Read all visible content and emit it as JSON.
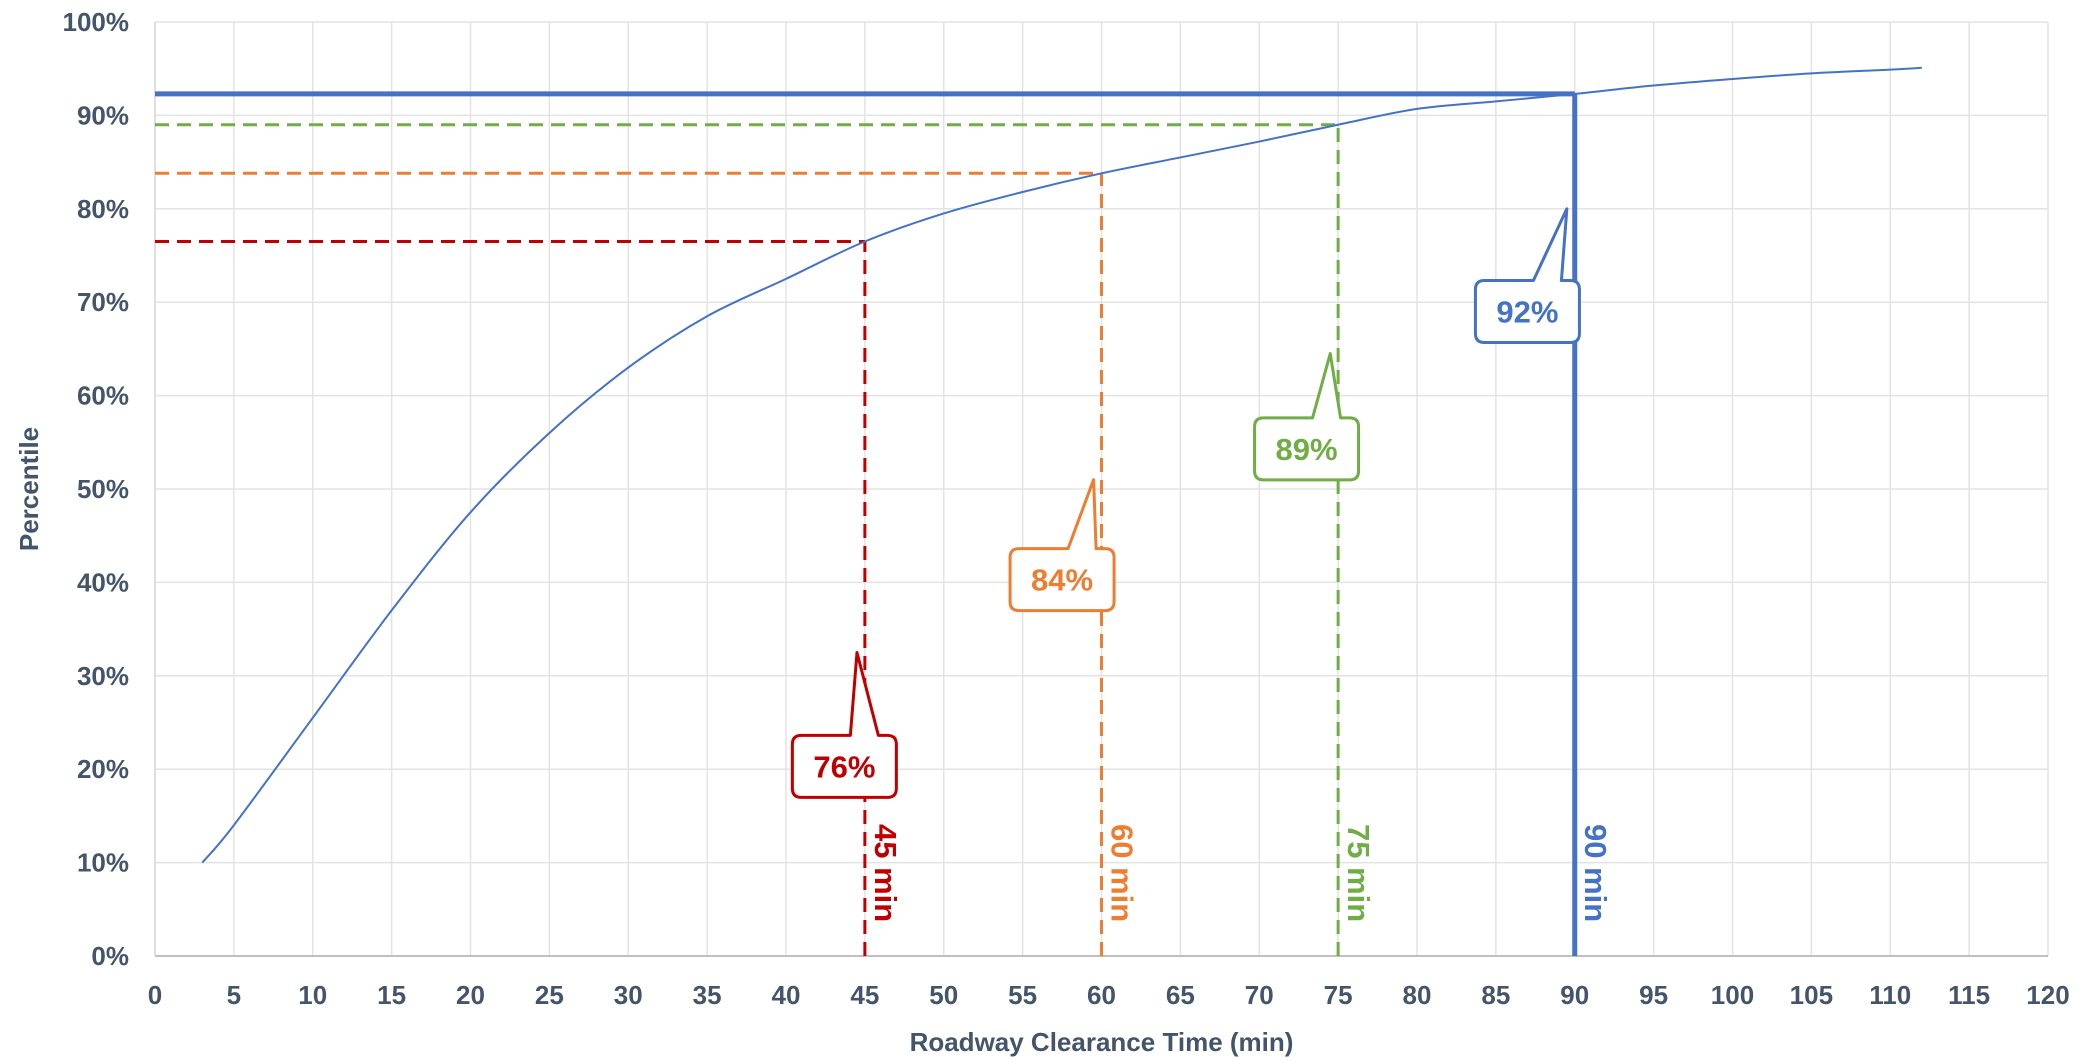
{
  "chart_data": {
    "type": "line",
    "title": "",
    "xlabel": "Roadway Clearance Time (min)",
    "ylabel": "Percentile",
    "xlim": [
      0,
      120
    ],
    "ylim": [
      0,
      100
    ],
    "x_ticks": [
      "0",
      "5",
      "10",
      "15",
      "20",
      "25",
      "30",
      "35",
      "40",
      "45",
      "50",
      "55",
      "60",
      "65",
      "70",
      "75",
      "80",
      "85",
      "90",
      "95",
      "100",
      "105",
      "110",
      "115",
      "120"
    ],
    "y_ticks": [
      "0%",
      "10%",
      "20%",
      "30%",
      "40%",
      "50%",
      "60%",
      "70%",
      "80%",
      "90%",
      "100%"
    ],
    "grid": true,
    "series": [
      {
        "color": "#4472c4",
        "x": [
          3,
          5,
          10,
          15,
          20,
          25,
          30,
          35,
          40,
          45,
          50,
          55,
          60,
          65,
          70,
          75,
          80,
          85,
          90,
          95,
          100,
          105,
          110,
          112
        ],
        "y": [
          10,
          14,
          25.5,
          37,
          47.5,
          56,
          63,
          68.5,
          72.5,
          76.5,
          79.5,
          81.8,
          83.8,
          85.5,
          87.2,
          89,
          90.7,
          91.5,
          92.3,
          93.2,
          93.9,
          94.5,
          94.9,
          95.1
        ]
      }
    ],
    "markers": [
      {
        "minute": 45,
        "percentile": 76.5,
        "color": "#c00000",
        "vertical_label": "45 min",
        "callout": "76%",
        "dashed": true
      },
      {
        "minute": 60,
        "percentile": 83.8,
        "color": "#ed7d31",
        "vertical_label": "60 min",
        "callout": "84%",
        "dashed": true
      },
      {
        "minute": 75,
        "percentile": 89,
        "color": "#70ad47",
        "vertical_label": "75 min",
        "callout": "89%",
        "dashed": true
      },
      {
        "minute": 90,
        "percentile": 92.3,
        "color": "#4472c4",
        "vertical_label": "90 min",
        "callout": "92%",
        "dashed": false
      }
    ]
  }
}
